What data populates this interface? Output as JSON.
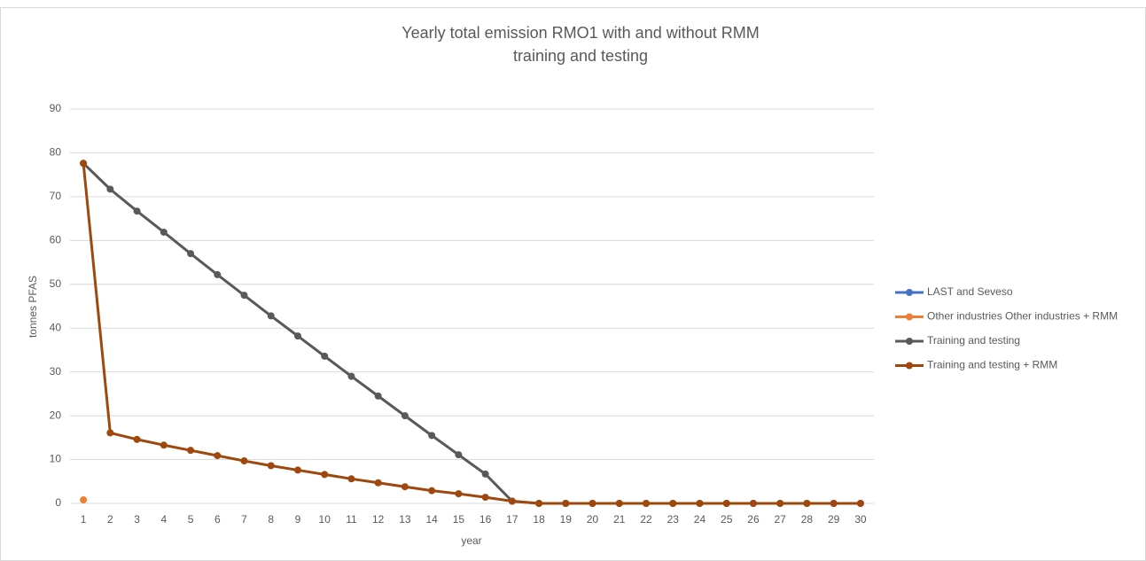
{
  "chart_data": {
    "type": "line",
    "title": [
      "Yearly total emission RMO1 with and without RMM",
      "training and testing"
    ],
    "x_label": "year",
    "y_label": "tonnes PFAS",
    "categories": [
      1,
      2,
      3,
      4,
      5,
      6,
      7,
      8,
      9,
      10,
      11,
      12,
      13,
      14,
      15,
      16,
      17,
      18,
      19,
      20,
      21,
      22,
      23,
      24,
      25,
      26,
      27,
      28,
      29,
      30
    ],
    "series": [
      {
        "name": "LAST and Seveso",
        "color": "#4472c4",
        "values": [
          null,
          null,
          null,
          null,
          null,
          null,
          null,
          null,
          null,
          null,
          null,
          null,
          null,
          null,
          null,
          null,
          null,
          null,
          null,
          null,
          null,
          null,
          null,
          null,
          null,
          null,
          null,
          null,
          null,
          null
        ]
      },
      {
        "name": "Other industries Other industries + RMM",
        "color": "#ed7d31",
        "values": [
          0.8,
          null,
          null,
          null,
          null,
          null,
          null,
          null,
          null,
          null,
          null,
          null,
          null,
          null,
          null,
          null,
          null,
          null,
          null,
          null,
          null,
          null,
          null,
          null,
          null,
          null,
          null,
          null,
          null,
          null
        ]
      },
      {
        "name": "Training and testing",
        "color": "#595959",
        "values": [
          77.6,
          71.7,
          66.7,
          61.9,
          57,
          52.2,
          47.5,
          42.8,
          38.2,
          33.6,
          29,
          24.5,
          20,
          15.5,
          11.1,
          6.7,
          0.5,
          0,
          0,
          0,
          0,
          0,
          0,
          0,
          0,
          0,
          0,
          0,
          0,
          0
        ]
      },
      {
        "name": "Training and testing + RMM",
        "color": "#9e480e",
        "values": [
          77.6,
          16.1,
          14.6,
          13.3,
          12.1,
          10.9,
          9.7,
          8.6,
          7.6,
          6.6,
          5.6,
          4.7,
          3.8,
          2.9,
          2.2,
          1.4,
          0.5,
          0,
          0,
          0,
          0,
          0,
          0,
          0,
          0,
          0,
          0,
          0,
          0,
          0
        ]
      }
    ],
    "ylim": [
      0,
      90
    ],
    "yticks": [
      0,
      10,
      20,
      30,
      40,
      50,
      60,
      70,
      80,
      90
    ],
    "grid": true,
    "legend": "right"
  }
}
